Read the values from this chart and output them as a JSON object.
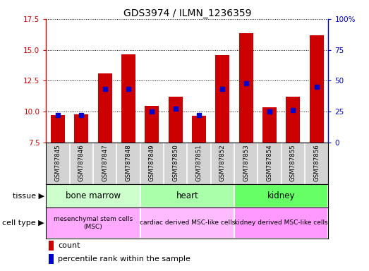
{
  "title": "GDS3974 / ILMN_1236359",
  "samples": [
    "GSM787845",
    "GSM787846",
    "GSM787847",
    "GSM787848",
    "GSM787849",
    "GSM787850",
    "GSM787851",
    "GSM787852",
    "GSM787853",
    "GSM787854",
    "GSM787855",
    "GSM787856"
  ],
  "bar_values": [
    9.7,
    9.75,
    13.1,
    14.65,
    10.45,
    11.2,
    9.65,
    14.55,
    16.35,
    10.35,
    11.2,
    16.2
  ],
  "percentile_values": [
    22,
    22,
    43,
    43,
    25,
    27,
    22,
    43,
    48,
    25,
    26,
    45
  ],
  "ylim_left": [
    7.5,
    17.5
  ],
  "ylim_right": [
    0,
    100
  ],
  "yticks_left": [
    7.5,
    10.0,
    12.5,
    15.0,
    17.5
  ],
  "yticks_right": [
    0,
    25,
    50,
    75,
    100
  ],
  "bar_color": "#cc0000",
  "marker_color": "#0000cc",
  "bar_width": 0.6,
  "tissue_groups": [
    {
      "label": "bone marrow",
      "start": 0,
      "end": 3,
      "color": "#ccffcc"
    },
    {
      "label": "heart",
      "start": 4,
      "end": 7,
      "color": "#aaffaa"
    },
    {
      "label": "kidney",
      "start": 8,
      "end": 11,
      "color": "#66ff66"
    }
  ],
  "cell_type_groups": [
    {
      "label": "mesenchymal stem cells\n(MSC)",
      "start": 0,
      "end": 3,
      "color": "#ffaaff"
    },
    {
      "label": "cardiac derived MSC-like cells",
      "start": 4,
      "end": 7,
      "color": "#ffbbff"
    },
    {
      "label": "kidney derived MSC-like cells",
      "start": 8,
      "end": 11,
      "color": "#ff99ff"
    }
  ],
  "tissue_label": "tissue",
  "cell_type_label": "cell type",
  "legend_count_label": "count",
  "legend_pct_label": "percentile rank within the sample",
  "background_gray": "#d3d3d3",
  "left_axis_color": "#cc0000",
  "right_axis_color": "#0000cc",
  "n_samples": 12
}
